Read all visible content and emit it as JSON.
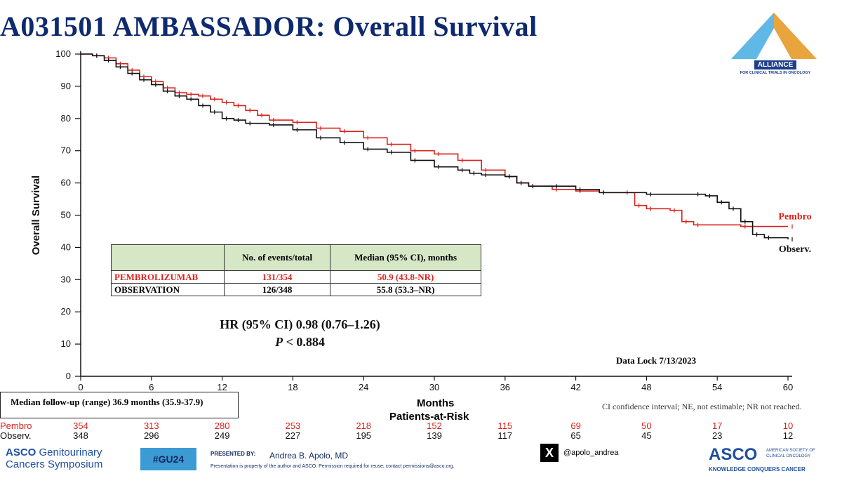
{
  "title": "A031501 AMBASSADOR: Overall Survival",
  "logo": {
    "name": "ALLIANCE",
    "subtitle": "FOR CLINICAL TRIALS IN ONCOLOGY"
  },
  "chart_data": {
    "type": "line",
    "ylabel": "Overall Survival",
    "xlabel": "Months",
    "xlim": [
      0,
      60
    ],
    "ylim": [
      0,
      100
    ],
    "x_ticks": [
      0,
      6,
      12,
      18,
      24,
      30,
      36,
      42,
      48,
      54,
      60
    ],
    "y_ticks": [
      0,
      10,
      20,
      30,
      40,
      50,
      60,
      70,
      80,
      90,
      100
    ],
    "series": [
      {
        "name": "Pembro",
        "color": "#d9231d",
        "points": [
          [
            0,
            100
          ],
          [
            1,
            99.5
          ],
          [
            2,
            98.8
          ],
          [
            3,
            97
          ],
          [
            4,
            95
          ],
          [
            5,
            93
          ],
          [
            6,
            91.5
          ],
          [
            7,
            89.5
          ],
          [
            8,
            88
          ],
          [
            9,
            87.5
          ],
          [
            10,
            87
          ],
          [
            11,
            86
          ],
          [
            12,
            85
          ],
          [
            13,
            84
          ],
          [
            14,
            82.5
          ],
          [
            15,
            81
          ],
          [
            16,
            79.5
          ],
          [
            18,
            78.8
          ],
          [
            20,
            77
          ],
          [
            22,
            76
          ],
          [
            24,
            74
          ],
          [
            26,
            72
          ],
          [
            28,
            70
          ],
          [
            30,
            69
          ],
          [
            32,
            67
          ],
          [
            34,
            64
          ],
          [
            36,
            62
          ],
          [
            37,
            60
          ],
          [
            38,
            59
          ],
          [
            40,
            58
          ],
          [
            42,
            57.5
          ],
          [
            44,
            57
          ],
          [
            46,
            57
          ],
          [
            47,
            53
          ],
          [
            48,
            52
          ],
          [
            50,
            51.5
          ],
          [
            51,
            48
          ],
          [
            52,
            47
          ],
          [
            56,
            46.5
          ],
          [
            60,
            46.5
          ]
        ]
      },
      {
        "name": "Observ.",
        "color": "#111111",
        "points": [
          [
            0,
            100
          ],
          [
            1,
            99.5
          ],
          [
            2,
            98
          ],
          [
            3,
            96
          ],
          [
            4,
            94
          ],
          [
            5,
            92
          ],
          [
            6,
            90.5
          ],
          [
            7,
            88.5
          ],
          [
            8,
            87
          ],
          [
            9,
            86
          ],
          [
            10,
            84
          ],
          [
            11,
            82
          ],
          [
            12,
            80
          ],
          [
            13,
            79.5
          ],
          [
            14,
            78.5
          ],
          [
            16,
            78
          ],
          [
            18,
            76.5
          ],
          [
            20,
            74
          ],
          [
            22,
            72.5
          ],
          [
            24,
            70.5
          ],
          [
            26,
            69.5
          ],
          [
            28,
            67
          ],
          [
            30,
            65
          ],
          [
            32,
            64
          ],
          [
            33,
            63
          ],
          [
            34,
            62.5
          ],
          [
            36,
            62
          ],
          [
            37,
            60
          ],
          [
            38,
            59
          ],
          [
            40,
            59
          ],
          [
            42,
            58
          ],
          [
            44,
            57
          ],
          [
            48,
            56.5
          ],
          [
            52,
            56.5
          ],
          [
            53,
            56
          ],
          [
            54,
            54
          ],
          [
            55,
            52
          ],
          [
            56,
            48
          ],
          [
            57,
            44
          ],
          [
            58,
            43
          ],
          [
            60,
            42.5
          ]
        ]
      }
    ]
  },
  "table": {
    "headers": [
      "",
      "No. of events/total",
      "Median (95% CI), months"
    ],
    "rows": [
      {
        "label": "PEMBROLIZUMAB",
        "events": "131/354",
        "median": "50.9 (43.8-NR)"
      },
      {
        "label": "OBSERVATION",
        "events": "126/348",
        "median": "55.8 (53.3–NR)"
      }
    ]
  },
  "hr_text": "HR (95% CI) 0.98 (0.76–1.26)",
  "p_label": "P",
  "p_value": " < 0.884",
  "data_lock": "Data Lock 7/13/2023",
  "follow_up": "Median follow-up (range)   36.9 months (35.9-37.9)",
  "patients_at_risk_title": "Patients-at-Risk",
  "ci_note": "CI confidence interval; NE, not estimable; NR not reached.",
  "risk": {
    "pembro_label": "Pembro",
    "observ_label": "Observ.",
    "months": [
      0,
      6,
      12,
      18,
      24,
      30,
      36,
      42,
      48,
      54,
      60
    ],
    "pembro": [
      "354",
      "313",
      "280",
      "253",
      "218",
      "152",
      "115",
      "69",
      "50",
      "17",
      "10"
    ],
    "observ": [
      "348",
      "296",
      "249",
      "227",
      "195",
      "139",
      "117",
      "65",
      "45",
      "23",
      "12"
    ]
  },
  "footer": {
    "asco_gu_line1": "ASCO",
    "asco_gu_line1b": " Genitourinary",
    "asco_gu_line2": "Cancers Symposium",
    "hashtag": "#GU24",
    "presented_by": "PRESENTED BY:",
    "presenter": "Andrea B. Apolo, MD",
    "presentation_note": "Presentation is property of the author and ASCO. Permission required for reuse; contact permissions@asco.org.",
    "x_handle": "@apolo_andrea",
    "asco": "ASCO",
    "asco_full": "AMERICAN SOCIETY OF CLINICAL ONCOLOGY",
    "asco_tagline": "KNOWLEDGE CONQUERS CANCER"
  }
}
